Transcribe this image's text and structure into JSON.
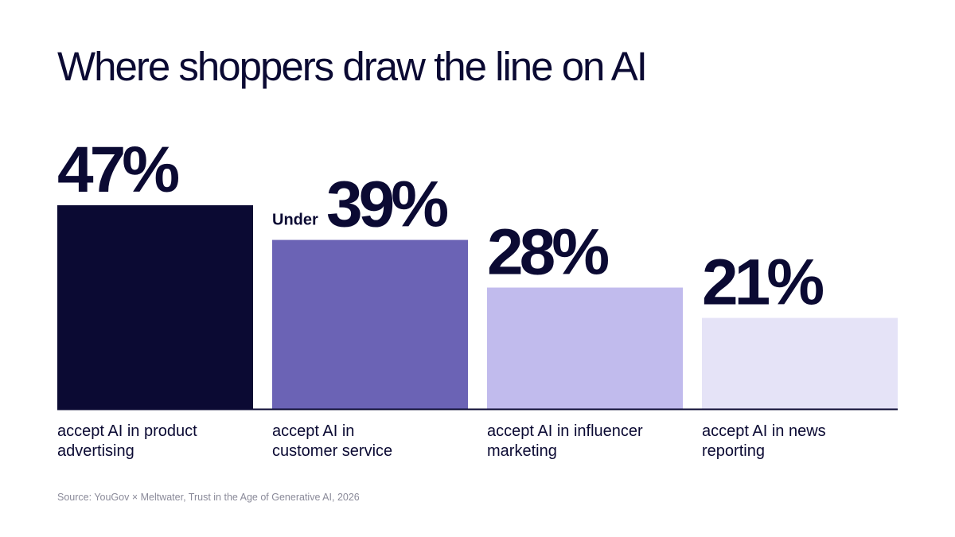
{
  "title": "Where shoppers draw the line on AI",
  "source": "Source: YouGov × Meltwater, Trust in the Age of Generative AI, 2026",
  "chart_data": {
    "type": "bar",
    "title": "Where shoppers draw the line on AI",
    "ylim": [
      0,
      47
    ],
    "grid": false,
    "categories": [
      [
        "accept AI in product",
        "advertising"
      ],
      [
        "accept AI in",
        "customer service"
      ],
      [
        "accept AI in influencer",
        "marketing"
      ],
      [
        "accept AI in news",
        "reporting"
      ]
    ],
    "values": [
      47,
      39,
      28,
      21
    ],
    "value_labels": [
      "47%",
      "39%",
      "28%",
      "21%"
    ],
    "value_prefixes": [
      "",
      "Under",
      "",
      ""
    ],
    "colors": [
      "#0b0a33",
      "#6b63b5",
      "#c1bbed",
      "#e5e3f7"
    ]
  }
}
